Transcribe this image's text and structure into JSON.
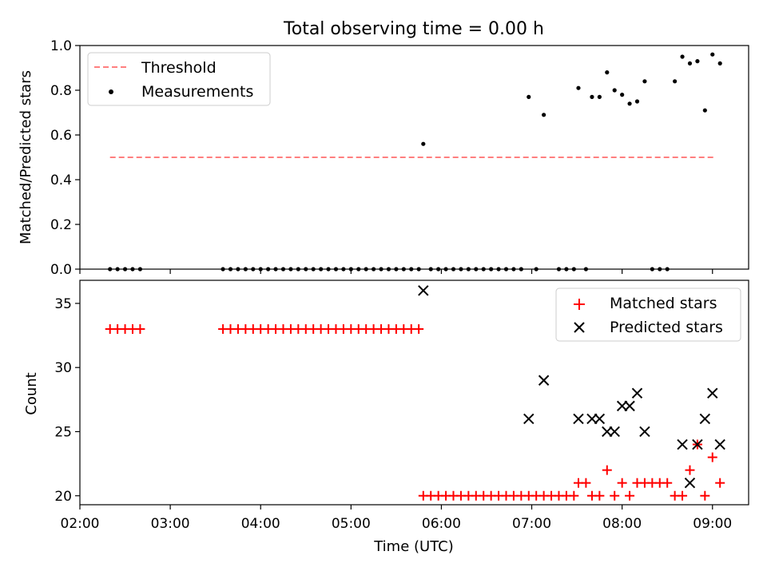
{
  "chart_data": {
    "title": "Total observing time = 0.00 h",
    "xlabel": "Time (UTC)",
    "xlim": [
      "02:00",
      "09:24"
    ],
    "xticks": [
      "02:00",
      "03:00",
      "04:00",
      "05:00",
      "06:00",
      "07:00",
      "08:00",
      "09:00"
    ],
    "panels": [
      {
        "type": "scatter",
        "ylabel": "Matched/Predicted stars",
        "ylim": [
          0,
          1.0
        ],
        "yticks": [
          "0.0",
          "0.2",
          "0.4",
          "0.6",
          "0.8",
          "1.0"
        ],
        "legend": "top-left",
        "threshold": {
          "name": "Threshold",
          "value": 0.5,
          "x": [
            "02:20",
            "09:02"
          ],
          "color": "#ff7f7f"
        },
        "series": [
          {
            "name": "Measurements",
            "color": "#000000",
            "x": [
              "02:20",
              "02:25",
              "02:30",
              "02:35",
              "02:40",
              "03:35",
              "03:40",
              "03:45",
              "03:50",
              "03:55",
              "04:00",
              "04:05",
              "04:10",
              "04:15",
              "04:20",
              "04:25",
              "04:30",
              "04:35",
              "04:40",
              "04:45",
              "04:50",
              "04:55",
              "05:00",
              "05:05",
              "05:10",
              "05:15",
              "05:20",
              "05:25",
              "05:30",
              "05:35",
              "05:40",
              "05:45",
              "05:48",
              "05:53",
              "05:58",
              "06:03",
              "06:08",
              "06:13",
              "06:18",
              "06:23",
              "06:28",
              "06:33",
              "06:38",
              "06:43",
              "06:48",
              "06:53",
              "06:58",
              "07:03",
              "07:08",
              "07:18",
              "07:23",
              "07:28",
              "07:31",
              "07:36",
              "07:40",
              "07:45",
              "07:50",
              "07:55",
              "08:00",
              "08:05",
              "08:10",
              "08:15",
              "08:20",
              "08:25",
              "08:30",
              "08:35",
              "08:40",
              "08:45",
              "08:50",
              "08:55",
              "09:00",
              "09:05"
            ],
            "values": [
              0,
              0,
              0,
              0,
              0,
              0,
              0,
              0,
              0,
              0,
              0,
              0,
              0,
              0,
              0,
              0,
              0,
              0,
              0,
              0,
              0,
              0,
              0,
              0,
              0,
              0,
              0,
              0,
              0,
              0,
              0,
              0,
              0.56,
              0,
              0,
              0,
              0,
              0,
              0,
              0,
              0,
              0,
              0,
              0,
              0,
              0,
              0.77,
              0,
              0.69,
              0,
              0,
              0,
              0.81,
              0,
              0.77,
              0.77,
              0.88,
              0.8,
              0.78,
              0.74,
              0.75,
              0.84,
              0,
              0,
              0,
              0.84,
              0.95,
              0.92,
              0.93,
              0.71,
              0.96,
              0.92
            ]
          }
        ]
      },
      {
        "type": "scatter",
        "ylabel": "Count",
        "ylim": [
          19.3,
          36.8
        ],
        "yticks": [
          "20",
          "25",
          "30",
          "35"
        ],
        "legend": "top-right",
        "series": [
          {
            "name": "Matched stars",
            "marker": "plus",
            "color": "#ff0000",
            "x": [
              "02:20",
              "02:25",
              "02:30",
              "02:35",
              "02:40",
              "03:35",
              "03:40",
              "03:45",
              "03:50",
              "03:55",
              "04:00",
              "04:05",
              "04:10",
              "04:15",
              "04:20",
              "04:25",
              "04:30",
              "04:35",
              "04:40",
              "04:45",
              "04:50",
              "04:55",
              "05:00",
              "05:05",
              "05:10",
              "05:15",
              "05:20",
              "05:25",
              "05:30",
              "05:35",
              "05:40",
              "05:45",
              "05:48",
              "05:53",
              "05:58",
              "06:03",
              "06:08",
              "06:13",
              "06:18",
              "06:23",
              "06:28",
              "06:33",
              "06:38",
              "06:43",
              "06:48",
              "06:53",
              "06:58",
              "07:03",
              "07:08",
              "07:13",
              "07:18",
              "07:23",
              "07:28",
              "07:31",
              "07:36",
              "07:40",
              "07:45",
              "07:50",
              "07:55",
              "08:00",
              "08:05",
              "08:10",
              "08:15",
              "08:20",
              "08:25",
              "08:30",
              "08:35",
              "08:40",
              "08:45",
              "08:50",
              "08:55",
              "09:00",
              "09:05"
            ],
            "values": [
              33,
              33,
              33,
              33,
              33,
              33,
              33,
              33,
              33,
              33,
              33,
              33,
              33,
              33,
              33,
              33,
              33,
              33,
              33,
              33,
              33,
              33,
              33,
              33,
              33,
              33,
              33,
              33,
              33,
              33,
              33,
              33,
              20,
              20,
              20,
              20,
              20,
              20,
              20,
              20,
              20,
              20,
              20,
              20,
              20,
              20,
              20,
              20,
              20,
              20,
              20,
              20,
              20,
              21,
              21,
              20,
              20,
              22,
              20,
              21,
              20,
              21,
              21,
              21,
              21,
              21,
              20,
              20,
              22,
              24,
              20,
              23,
              21
            ]
          },
          {
            "name": "Predicted stars",
            "marker": "x",
            "color": "#000000",
            "x": [
              "05:48",
              "06:58",
              "07:08",
              "07:31",
              "07:40",
              "07:45",
              "07:50",
              "07:55",
              "08:00",
              "08:05",
              "08:10",
              "08:15",
              "08:40",
              "08:45",
              "08:50",
              "08:55",
              "09:00",
              "09:05"
            ],
            "values": [
              36,
              26,
              29,
              26,
              26,
              26,
              25,
              25,
              27,
              27,
              28,
              25,
              24,
              21,
              24,
              26,
              28,
              24
            ]
          }
        ]
      }
    ]
  }
}
